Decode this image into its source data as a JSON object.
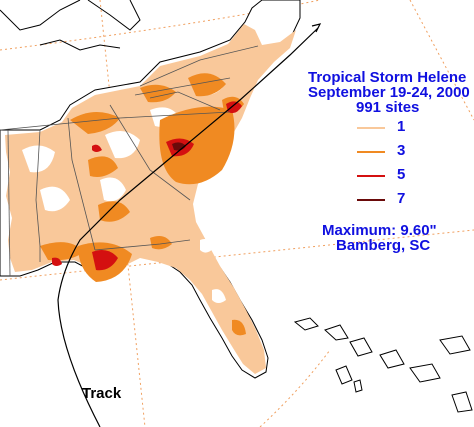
{
  "title": {
    "line1": "Tropical Storm Helene",
    "line2": "September 19-24, 2000",
    "line3": "991 sites"
  },
  "legend": [
    {
      "value": "1",
      "color": "#f9c89a"
    },
    {
      "value": "3",
      "color": "#f08a22"
    },
    {
      "value": "5",
      "color": "#d41010"
    },
    {
      "value": "7",
      "color": "#6a0a0a"
    }
  ],
  "maximum": {
    "label": "Maximum:  9.60\"",
    "location": "Bamberg, SC"
  },
  "track_label": "Track",
  "colors": {
    "text_blue": "#1010e0",
    "land_outline": "#000000",
    "state_border": "#555555",
    "grid_line": "#f0a060",
    "shade_1": "#f9c89a",
    "shade_3": "#f08a22",
    "shade_5": "#d41010",
    "shade_7": "#6a0a0a"
  }
}
